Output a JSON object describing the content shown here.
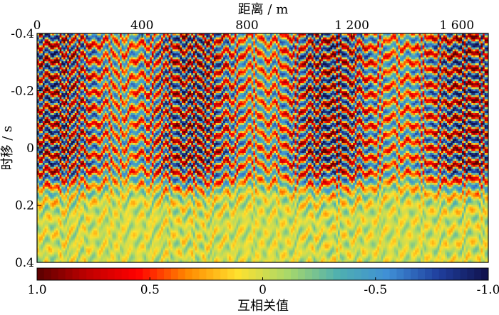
{
  "chart_data": {
    "type": "heatmap",
    "title": "",
    "xlabel": "距离 / m",
    "ylabel": "时移 / s",
    "x_axis_position": "top",
    "x_range": [
      0,
      1720
    ],
    "x_ticks": [
      0,
      400,
      800,
      1200,
      1600
    ],
    "x_tick_labels": [
      "0",
      "400",
      "800",
      "1 200",
      "1 600"
    ],
    "y_range": [
      -0.4,
      0.4
    ],
    "y_inverted": true,
    "y_ticks": [
      -0.4,
      -0.2,
      0,
      0.2,
      0.4
    ],
    "y_tick_labels": [
      "-0.4",
      "-0.2",
      "0",
      "0.2",
      "0.4"
    ],
    "colorbar": {
      "label": "互相关值",
      "position": "bottom",
      "range": [
        1.0,
        -1.0
      ],
      "ticks": [
        1.0,
        0.5,
        0,
        -0.5,
        -1.0
      ],
      "tick_labels": [
        "1.0",
        "0.5",
        "0",
        "-0.5",
        "-1.0"
      ],
      "colors": [
        "#5a0000",
        "#c00000",
        "#ff0000",
        "#ff8a00",
        "#ffe12e",
        "#a8d86a",
        "#4fb0b0",
        "#3f8fd6",
        "#1f3f9e",
        "#10104a"
      ]
    },
    "grid": false
  }
}
